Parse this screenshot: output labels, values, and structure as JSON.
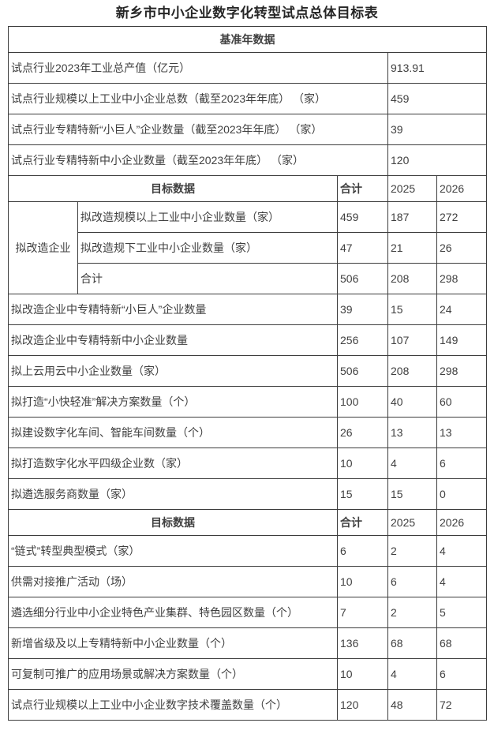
{
  "page": {
    "title": "新乡市中小企业数字化转型试点总体目标表"
  },
  "colors": {
    "background": "#ffffff",
    "text": "#404040",
    "border": "#3d3d3d",
    "title_text": "#262626"
  },
  "table": {
    "column_headers": [
      "目标数据",
      "合计",
      "2025",
      "2026"
    ],
    "rows": [
      {
        "type": "header",
        "cells": [
          {
            "text": "基准年数据",
            "colspan": 5,
            "style": "hd",
            "name": "section-header-baseline"
          }
        ]
      },
      {
        "type": "data",
        "cells": [
          {
            "text": "试点行业2023年工业总产值（亿元）",
            "colspan": 3,
            "style": "lbl",
            "name": "row-label-cell"
          },
          {
            "text": "913.91",
            "colspan": 2,
            "style": "val",
            "name": "value-cell"
          }
        ]
      },
      {
        "type": "data",
        "cells": [
          {
            "text": "试点行业规模以上工业中小企业总数（截至2023年年底） （家）",
            "colspan": 3,
            "style": "lbl",
            "name": "row-label-cell"
          },
          {
            "text": "459",
            "colspan": 2,
            "style": "val",
            "name": "value-cell"
          }
        ]
      },
      {
        "type": "data",
        "cells": [
          {
            "text": "试点行业专精特新“小巨人”企业数量（截至2023年年底） （家）",
            "colspan": 3,
            "style": "lbl",
            "name": "row-label-cell"
          },
          {
            "text": "39",
            "colspan": 2,
            "style": "val",
            "name": "value-cell"
          }
        ]
      },
      {
        "type": "data",
        "cells": [
          {
            "text": "试点行业专精特新中小企业数量（截至2023年年底） （家）",
            "colspan": 3,
            "style": "lbl",
            "name": "row-label-cell"
          },
          {
            "text": "120",
            "colspan": 2,
            "style": "val",
            "name": "value-cell"
          }
        ]
      },
      {
        "type": "header",
        "cells": [
          {
            "text": "目标数据",
            "colspan": 2,
            "style": "hd",
            "name": "section-header-targets"
          },
          {
            "text": "合计",
            "style": "hdl",
            "name": "column-header-total"
          },
          {
            "text": "2025",
            "style": "lbl",
            "name": "column-header-2025"
          },
          {
            "text": "2026",
            "style": "lbl",
            "name": "column-header-2026"
          }
        ]
      },
      {
        "type": "data",
        "cells": [
          {
            "text": "拟改造企业",
            "rowspan": 3,
            "style": "grp",
            "name": "group-label-cell"
          },
          {
            "text": "拟改造规模以上工业中小企业数量（家）",
            "style": "lbl",
            "name": "row-label-cell"
          },
          {
            "text": "459",
            "style": "val",
            "name": "value-cell"
          },
          {
            "text": "187",
            "style": "val",
            "name": "value-cell"
          },
          {
            "text": "272",
            "style": "val",
            "name": "value-cell"
          }
        ]
      },
      {
        "type": "data",
        "cells": [
          {
            "text": "拟改造规下工业中小企业数量（家）",
            "style": "lbl",
            "name": "row-label-cell"
          },
          {
            "text": "47",
            "style": "val",
            "name": "value-cell"
          },
          {
            "text": "21",
            "style": "val",
            "name": "value-cell"
          },
          {
            "text": "26",
            "style": "val",
            "name": "value-cell"
          }
        ]
      },
      {
        "type": "data",
        "cells": [
          {
            "text": "合计",
            "style": "lbl",
            "name": "row-label-cell"
          },
          {
            "text": "506",
            "style": "val",
            "name": "value-cell"
          },
          {
            "text": "208",
            "style": "val",
            "name": "value-cell"
          },
          {
            "text": "298",
            "style": "val",
            "name": "value-cell"
          }
        ]
      },
      {
        "type": "data",
        "cells": [
          {
            "text": "拟改造企业中专精特新“小巨人”企业数量",
            "colspan": 2,
            "style": "lbl",
            "name": "row-label-cell"
          },
          {
            "text": "39",
            "style": "val",
            "name": "value-cell"
          },
          {
            "text": "15",
            "style": "val",
            "name": "value-cell"
          },
          {
            "text": "24",
            "style": "val",
            "name": "value-cell"
          }
        ]
      },
      {
        "type": "data",
        "cells": [
          {
            "text": "拟改造企业中专精特新中小企业数量",
            "colspan": 2,
            "style": "lbl",
            "name": "row-label-cell"
          },
          {
            "text": "256",
            "style": "val",
            "name": "value-cell"
          },
          {
            "text": "107",
            "style": "val",
            "name": "value-cell"
          },
          {
            "text": "149",
            "style": "val",
            "name": "value-cell"
          }
        ]
      },
      {
        "type": "data",
        "cells": [
          {
            "text": "拟上云用云中小企业数量（家）",
            "colspan": 2,
            "style": "lbl",
            "name": "row-label-cell"
          },
          {
            "text": "506",
            "style": "val",
            "name": "value-cell"
          },
          {
            "text": "208",
            "style": "val",
            "name": "value-cell"
          },
          {
            "text": "298",
            "style": "val",
            "name": "value-cell"
          }
        ]
      },
      {
        "type": "data",
        "cells": [
          {
            "text": "拟打造“小快轻准”解决方案数量（个）",
            "colspan": 2,
            "style": "lbl",
            "name": "row-label-cell"
          },
          {
            "text": "100",
            "style": "val",
            "name": "value-cell"
          },
          {
            "text": "40",
            "style": "val",
            "name": "value-cell"
          },
          {
            "text": "60",
            "style": "val",
            "name": "value-cell"
          }
        ]
      },
      {
        "type": "data",
        "cells": [
          {
            "text": "拟建设数字化车间、智能车间数量（个）",
            "colspan": 2,
            "style": "lbl",
            "name": "row-label-cell"
          },
          {
            "text": "26",
            "style": "val",
            "name": "value-cell"
          },
          {
            "text": "13",
            "style": "val",
            "name": "value-cell"
          },
          {
            "text": "13",
            "style": "val",
            "name": "value-cell"
          }
        ]
      },
      {
        "type": "data",
        "cells": [
          {
            "text": "拟打造数字化水平四级企业数（家）",
            "colspan": 2,
            "style": "lbl",
            "name": "row-label-cell"
          },
          {
            "text": "10",
            "style": "val",
            "name": "value-cell"
          },
          {
            "text": "4",
            "style": "val",
            "name": "value-cell"
          },
          {
            "text": "6",
            "style": "val",
            "name": "value-cell"
          }
        ]
      },
      {
        "type": "data",
        "cells": [
          {
            "text": "拟遴选服务商数量（家）",
            "colspan": 2,
            "style": "lbl",
            "name": "row-label-cell"
          },
          {
            "text": "15",
            "style": "val",
            "name": "value-cell"
          },
          {
            "text": "15",
            "style": "val",
            "name": "value-cell"
          },
          {
            "text": "0",
            "style": "val",
            "name": "value-cell"
          }
        ]
      },
      {
        "type": "header",
        "cells": [
          {
            "text": "目标数据",
            "colspan": 2,
            "style": "hd",
            "name": "section-header-targets"
          },
          {
            "text": "合计",
            "style": "hdl",
            "name": "column-header-total"
          },
          {
            "text": "2025",
            "style": "lbl",
            "name": "column-header-2025"
          },
          {
            "text": "2026",
            "style": "lbl",
            "name": "column-header-2026"
          }
        ]
      },
      {
        "type": "data",
        "cells": [
          {
            "text": "“链式”转型典型模式（家）",
            "colspan": 2,
            "style": "lbl",
            "name": "row-label-cell"
          },
          {
            "text": "6",
            "style": "val",
            "name": "value-cell"
          },
          {
            "text": "2",
            "style": "val",
            "name": "value-cell"
          },
          {
            "text": "4",
            "style": "val",
            "name": "value-cell"
          }
        ]
      },
      {
        "type": "data",
        "cells": [
          {
            "text": "供需对接推广活动（场）",
            "colspan": 2,
            "style": "lbl",
            "name": "row-label-cell"
          },
          {
            "text": "10",
            "style": "val",
            "name": "value-cell"
          },
          {
            "text": "6",
            "style": "val",
            "name": "value-cell"
          },
          {
            "text": "4",
            "style": "val",
            "name": "value-cell"
          }
        ]
      },
      {
        "type": "data",
        "cells": [
          {
            "text": "遴选细分行业中小企业特色产业集群、特色园区数量（个）",
            "colspan": 2,
            "style": "lbl",
            "name": "row-label-cell"
          },
          {
            "text": "7",
            "style": "val",
            "name": "value-cell"
          },
          {
            "text": "2",
            "style": "val",
            "name": "value-cell"
          },
          {
            "text": "5",
            "style": "val",
            "name": "value-cell"
          }
        ]
      },
      {
        "type": "data",
        "cells": [
          {
            "text": "新增省级及以上专精特新中小企业数量（个）",
            "colspan": 2,
            "style": "lbl",
            "name": "row-label-cell"
          },
          {
            "text": "136",
            "style": "val",
            "name": "value-cell"
          },
          {
            "text": "68",
            "style": "val",
            "name": "value-cell"
          },
          {
            "text": "68",
            "style": "val",
            "name": "value-cell"
          }
        ]
      },
      {
        "type": "data",
        "cells": [
          {
            "text": "可复制可推广的应用场景或解决方案数量（个）",
            "colspan": 2,
            "style": "lbl",
            "name": "row-label-cell"
          },
          {
            "text": "10",
            "style": "val",
            "name": "value-cell"
          },
          {
            "text": "4",
            "style": "val",
            "name": "value-cell"
          },
          {
            "text": "6",
            "style": "val",
            "name": "value-cell"
          }
        ]
      },
      {
        "type": "data",
        "cells": [
          {
            "text": "试点行业规模以上工业中小企业数字技术覆盖数量（个）",
            "colspan": 2,
            "style": "lbl",
            "name": "row-label-cell"
          },
          {
            "text": "120",
            "style": "val",
            "name": "value-cell"
          },
          {
            "text": "48",
            "style": "val",
            "name": "value-cell"
          },
          {
            "text": "72",
            "style": "val",
            "name": "value-cell"
          }
        ]
      }
    ]
  }
}
